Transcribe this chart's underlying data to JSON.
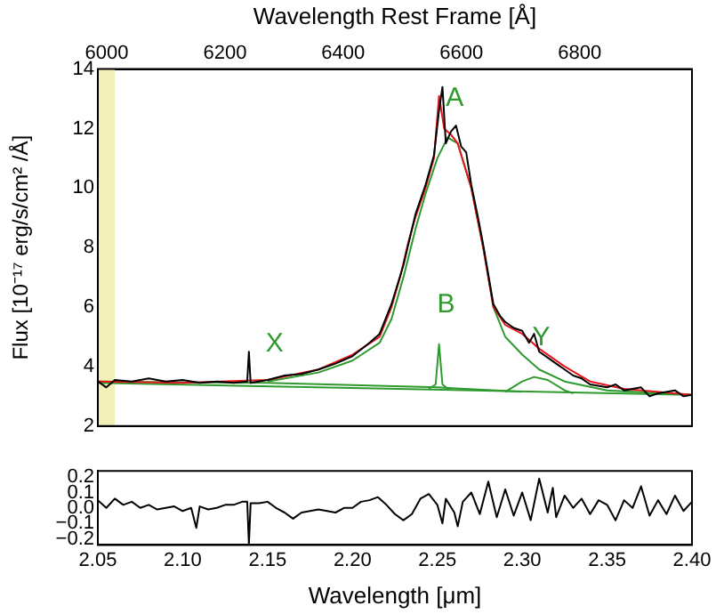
{
  "chart_data": [
    {
      "type": "line",
      "x2label": "Wavelength Rest Frame [Å]",
      "ylabel": "Flux [10⁻¹⁷ erg/s/cm² /Å]",
      "xlim": [
        2.05,
        2.4
      ],
      "x2lim": [
        5985,
        6990
      ],
      "x2ticks": [
        6000,
        6200,
        6400,
        6600,
        6800
      ],
      "ylim": [
        2,
        14
      ],
      "yticks": [
        2,
        4,
        6,
        8,
        10,
        12,
        14
      ],
      "tick_labels": "y",
      "legend": false,
      "marker": "none",
      "line_style": "solid",
      "bands": [
        {
          "axis": "x",
          "from": 2.05,
          "to": 2.06,
          "color": "#f3efb9"
        }
      ],
      "annotations": [
        {
          "text": "A",
          "x": 2.256,
          "y": 11.7
        },
        {
          "text": "B",
          "x": 2.251,
          "y": 4.75
        },
        {
          "text": "X",
          "x": 2.15,
          "y": 3.45
        },
        {
          "text": "Y",
          "x": 2.307,
          "y": 3.65
        }
      ],
      "series": [
        {
          "color": "#000000",
          "x": [
            2.05,
            2.055,
            2.06,
            2.07,
            2.08,
            2.09,
            2.1,
            2.11,
            2.12,
            2.13,
            2.138,
            2.139,
            2.14,
            2.15,
            2.16,
            2.17,
            2.18,
            2.19,
            2.2,
            2.21,
            2.216,
            2.223,
            2.23,
            2.237,
            2.243,
            2.248,
            2.251,
            2.253,
            2.255,
            2.258,
            2.261,
            2.264,
            2.267,
            2.27,
            2.274,
            2.277,
            2.28,
            2.283,
            2.287,
            2.29,
            2.295,
            2.3,
            2.304,
            2.307,
            2.31,
            2.315,
            2.32,
            2.325,
            2.33,
            2.335,
            2.34,
            2.35,
            2.355,
            2.36,
            2.37,
            2.375,
            2.38,
            2.39,
            2.395,
            2.4
          ],
          "values": [
            3.5,
            3.3,
            3.55,
            3.5,
            3.6,
            3.5,
            3.55,
            3.45,
            3.5,
            3.45,
            3.5,
            4.5,
            3.45,
            3.55,
            3.7,
            3.75,
            3.9,
            4.1,
            4.35,
            4.8,
            5.1,
            6.1,
            7.4,
            9.1,
            10.1,
            11.1,
            12.6,
            13.4,
            11.5,
            11.9,
            12.1,
            11.4,
            11.2,
            10.1,
            9,
            8.1,
            7.1,
            6.1,
            5.7,
            5.5,
            5.3,
            5.2,
            4.8,
            5.1,
            4.5,
            4.3,
            4.1,
            3.9,
            3.7,
            3.6,
            3.4,
            3.3,
            3.4,
            3.2,
            3.3,
            3,
            3.1,
            3.2,
            3,
            3.05
          ]
        },
        {
          "color": "#e8141c",
          "x": [
            2.05,
            2.1,
            2.15,
            2.18,
            2.2,
            2.216,
            2.223,
            2.228,
            2.233,
            2.237,
            2.243,
            2.248,
            2.251,
            2.254,
            2.258,
            2.262,
            2.27,
            2.277,
            2.283,
            2.29,
            2.3,
            2.304,
            2.31,
            2.325,
            2.34,
            2.36,
            2.4
          ],
          "values": [
            3.5,
            3.45,
            3.55,
            3.9,
            4.4,
            5,
            6,
            7,
            8.2,
            9,
            10,
            11,
            13.1,
            12,
            11.8,
            11.5,
            10,
            8,
            6,
            5.4,
            5.1,
            4.9,
            4.6,
            4,
            3.5,
            3.25,
            3.05
          ]
        },
        {
          "color": "#2e9a2e",
          "x": [
            2.15,
            2.18,
            2.2,
            2.216,
            2.223,
            2.23,
            2.237,
            2.243,
            2.25,
            2.256,
            2.262,
            2.27,
            2.277,
            2.283,
            2.29,
            2.3,
            2.31,
            2.325,
            2.35,
            2.4
          ],
          "values": [
            3.5,
            3.8,
            4.2,
            4.8,
            5.6,
            7,
            8.6,
            9.8,
            11,
            11.7,
            11.5,
            10,
            8,
            6,
            5,
            4.4,
            3.9,
            3.5,
            3.2,
            3.05
          ]
        },
        {
          "color": "#2e9a2e",
          "x": [
            2.05,
            2.4
          ],
          "values": [
            3.45,
            3.05
          ]
        },
        {
          "color": "#2e9a2e",
          "x": [
            2.05,
            2.15,
            2.25,
            2.3
          ],
          "values": [
            3.5,
            3.45,
            3.3,
            3.15
          ]
        },
        {
          "color": "#2e9a2e",
          "x": [
            2.245,
            2.249,
            2.251,
            2.253,
            2.257
          ],
          "values": [
            3.25,
            3.4,
            4.75,
            3.4,
            3.22
          ]
        },
        {
          "color": "#2e9a2e",
          "x": [
            2.29,
            2.3,
            2.307,
            2.315,
            2.325,
            2.33
          ],
          "values": [
            3.15,
            3.5,
            3.65,
            3.55,
            3.2,
            3.1
          ]
        }
      ]
    },
    {
      "type": "line",
      "xlabel": "Wavelength [μm]",
      "xlim": [
        2.05,
        2.4
      ],
      "xticks": [
        2.05,
        {
          "value": 2.1,
          "label": "2.10"
        },
        2.15,
        {
          "value": 2.2,
          "label": "2.20"
        },
        2.25,
        {
          "value": 2.3,
          "label": "2.30"
        },
        2.35,
        {
          "value": 2.4,
          "label": "2.40"
        }
      ],
      "ylim": [
        -0.24,
        0.24
      ],
      "yticks": [
        {
          "value": -0.2,
          "label": "−0.2"
        },
        {
          "value": -0.1,
          "label": "−0.1"
        },
        {
          "value": 0,
          "label": "0.0"
        },
        0.1,
        0.2
      ],
      "legend": false,
      "marker": "none",
      "line_style": "solid",
      "series": [
        {
          "color": "#000000",
          "x": [
            2.05,
            2.055,
            2.06,
            2.065,
            2.07,
            2.075,
            2.08,
            2.085,
            2.09,
            2.095,
            2.1,
            2.105,
            2.108,
            2.11,
            2.115,
            2.12,
            2.125,
            2.13,
            2.135,
            2.138,
            2.139,
            2.14,
            2.145,
            2.15,
            2.155,
            2.16,
            2.165,
            2.17,
            2.175,
            2.18,
            2.185,
            2.19,
            2.195,
            2.2,
            2.205,
            2.21,
            2.215,
            2.22,
            2.225,
            2.23,
            2.235,
            2.24,
            2.245,
            2.25,
            2.253,
            2.255,
            2.26,
            2.262,
            2.265,
            2.27,
            2.275,
            2.28,
            2.285,
            2.29,
            2.295,
            2.3,
            2.305,
            2.31,
            2.315,
            2.318,
            2.32,
            2.325,
            2.33,
            2.335,
            2.34,
            2.345,
            2.35,
            2.355,
            2.36,
            2.365,
            2.37,
            2.375,
            2.38,
            2.385,
            2.39,
            2.395,
            2.4
          ],
          "values": [
            0.05,
            0,
            0.06,
            0.02,
            0.04,
            0,
            0.02,
            -0.01,
            0,
            0.01,
            -0.02,
            0,
            -0.13,
            0.01,
            -0.01,
            0,
            0.02,
            0.02,
            0.04,
            0.04,
            -0.24,
            0.03,
            0.03,
            0.04,
            0,
            -0.03,
            -0.07,
            -0.03,
            -0.02,
            -0.01,
            -0.02,
            -0.03,
            0,
            0,
            0.04,
            0.05,
            0.07,
            0.02,
            -0.04,
            -0.08,
            -0.04,
            0.06,
            0.09,
            0.02,
            -0.1,
            0.06,
            -0.03,
            -0.12,
            0.04,
            0.1,
            -0.04,
            0.17,
            -0.06,
            0.12,
            -0.05,
            0.1,
            -0.08,
            0.19,
            -0.03,
            0.13,
            -0.06,
            0.08,
            0,
            0.06,
            -0.04,
            0.05,
            0.02,
            -0.08,
            0.05,
            0,
            0.14,
            -0.05,
            0.05,
            -0.04,
            0.08,
            -0.02,
            0.04
          ]
        }
      ]
    }
  ]
}
